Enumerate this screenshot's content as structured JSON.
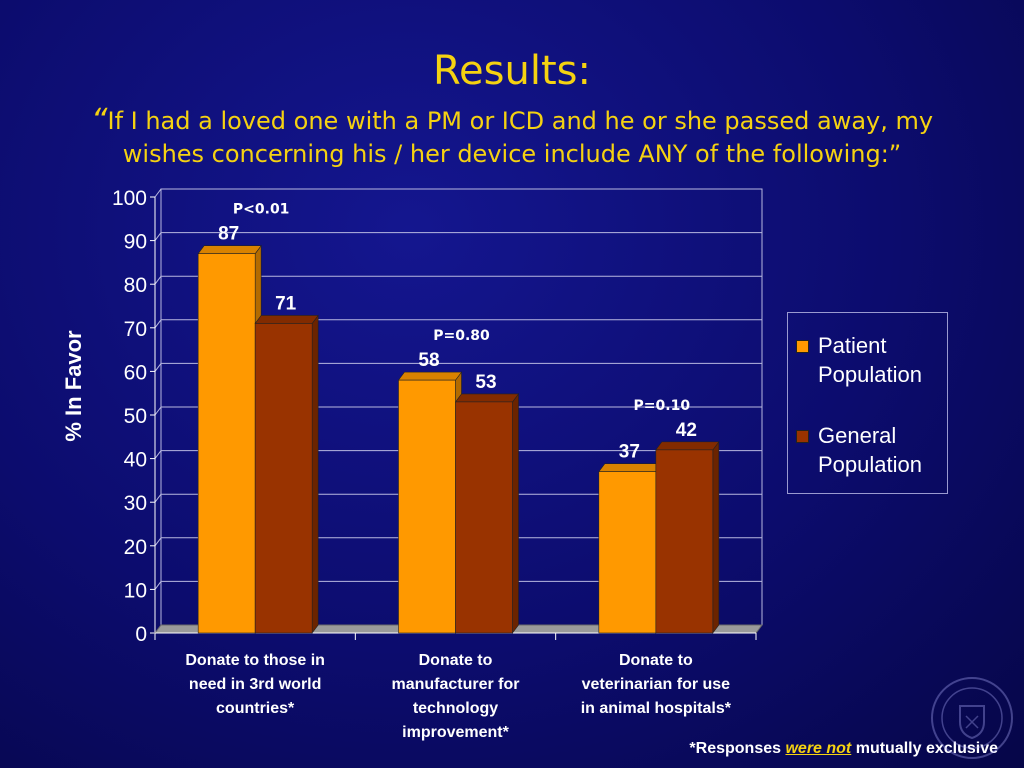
{
  "slide": {
    "title": "Results:",
    "subtitle_open_quote": "“",
    "subtitle": "If I had a loved one with a PM or ICD and he or she passed away, my wishes concerning his / her device include ANY of the following:”",
    "footnote_prefix": "*Responses ",
    "footnote_emphasis": "were not",
    "footnote_suffix": " mutually exclusive"
  },
  "chart_data": {
    "type": "bar",
    "ylabel": "% In Favor",
    "ylim": [
      0,
      100
    ],
    "yticks": [
      "0",
      "10",
      "20",
      "30",
      "40",
      "50",
      "60",
      "70",
      "80",
      "90",
      "100"
    ],
    "grid": true,
    "legend_position": "right",
    "categories": [
      [
        "Donate to those in",
        "need in 3rd world",
        "countries*"
      ],
      [
        "Donate to",
        "manufacturer for",
        "technology",
        "improvement*"
      ],
      [
        "Donate to",
        "veterinarian for use",
        "in animal hospitals*"
      ]
    ],
    "series": [
      {
        "name": "Patient Population",
        "legend_lines": [
          "Patient",
          "Population"
        ],
        "color": "#ff9900",
        "values": [
          87,
          58,
          37
        ]
      },
      {
        "name": "General Population",
        "legend_lines": [
          "General",
          "Population"
        ],
        "color": "#993300",
        "values": [
          71,
          53,
          42
        ]
      }
    ],
    "annotations": [
      "P<0.01",
      "P=0.80",
      "P=0.10"
    ]
  }
}
